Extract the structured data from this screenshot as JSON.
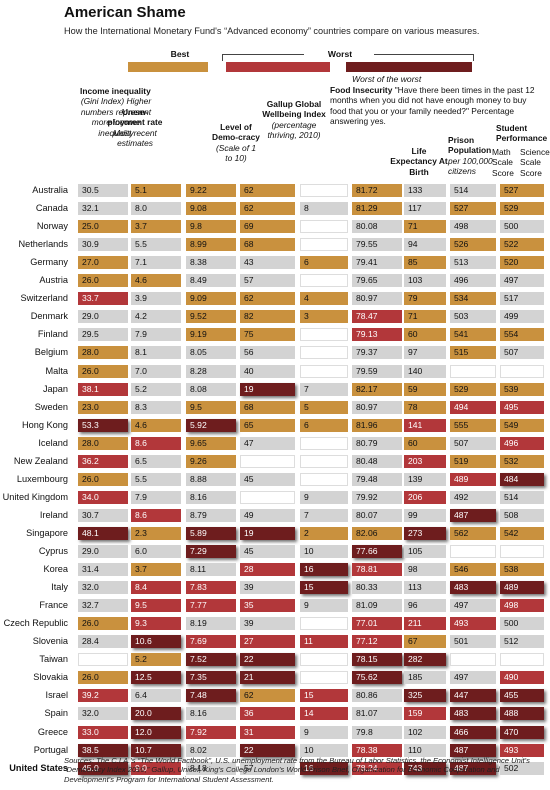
{
  "title": "American Shame",
  "subtitle": "How the International Monetary Fund's “Advanced economy” countries compare on various measures.",
  "legend": {
    "best": "Best",
    "worst": "Worst",
    "worst_of_worst": "Worst of the worst",
    "colors": {
      "neutral": "#d3d3d3",
      "best": "#c9913e",
      "worst": "#b2373a",
      "worst_of_worst": "#6e1d1e",
      "blank": "#ffffff"
    }
  },
  "headers": {
    "income": {
      "bold": "Income inequality",
      "note": "(Gini Index) Higher numbers represent more income inequality"
    },
    "unemp": {
      "bold": "Unem-ployment rate",
      "note": "Most recent estimates"
    },
    "democ": {
      "bold": "Level of Demo-cracy",
      "note": "(Scale of 1 to 10)"
    },
    "gallup": {
      "bold": "Gallup Global Wellbeing Index",
      "note": "(percentage thriving, 2010)"
    },
    "food": {
      "bold": "Food Insecurity",
      "note": "\"Have there been times in the past 12 months when you did not have enough money to buy food that you or your family needed?\" Percentage answering yes."
    },
    "life": {
      "bold": "Life Expectancy At Birth"
    },
    "prison": {
      "bold": "Prison Population",
      "note": "per 100,000 citizens"
    },
    "student": {
      "bold": "Student Performance",
      "math": "Math Scale Score",
      "science": "Science Scale Score"
    }
  },
  "chart_data": {
    "type": "table",
    "columns": [
      "Income inequality",
      "Unemployment rate",
      "Level of Democracy",
      "Gallup Global Wellbeing Index",
      "Food Insecurity",
      "Life Expectancy At Birth",
      "Prison Population",
      "Math Scale Score",
      "Science Scale Score"
    ],
    "rows": [
      {
        "country": "Australia",
        "values": [
          "30.5",
          "5.1",
          "9.22",
          "62",
          "",
          "81.72",
          "133",
          "514",
          "527"
        ],
        "ratings": [
          "n",
          "b",
          "b",
          "b",
          "x",
          "b",
          "n",
          "n",
          "b"
        ]
      },
      {
        "country": "Canada",
        "values": [
          "32.1",
          "8.0",
          "9.08",
          "62",
          "8",
          "81.29",
          "117",
          "527",
          "529"
        ],
        "ratings": [
          "n",
          "n",
          "b",
          "b",
          "n",
          "b",
          "n",
          "b",
          "b"
        ]
      },
      {
        "country": "Norway",
        "values": [
          "25.0",
          "3.7",
          "9.8",
          "69",
          "",
          "80.08",
          "71",
          "498",
          "500"
        ],
        "ratings": [
          "b",
          "b",
          "b",
          "b",
          "x",
          "n",
          "b",
          "n",
          "n"
        ]
      },
      {
        "country": "Netherlands",
        "values": [
          "30.9",
          "5.5",
          "8.99",
          "68",
          "",
          "79.55",
          "94",
          "526",
          "522"
        ],
        "ratings": [
          "n",
          "n",
          "b",
          "b",
          "x",
          "n",
          "n",
          "b",
          "b"
        ]
      },
      {
        "country": "Germany",
        "values": [
          "27.0",
          "7.1",
          "8.38",
          "43",
          "6",
          "79.41",
          "85",
          "513",
          "520"
        ],
        "ratings": [
          "b",
          "n",
          "n",
          "n",
          "b",
          "n",
          "b",
          "n",
          "b"
        ]
      },
      {
        "country": "Austria",
        "values": [
          "26.0",
          "4.6",
          "8.49",
          "57",
          "",
          "79.65",
          "103",
          "496",
          "497"
        ],
        "ratings": [
          "b",
          "b",
          "n",
          "n",
          "x",
          "n",
          "n",
          "n",
          "n"
        ]
      },
      {
        "country": "Switzerland",
        "values": [
          "33.7",
          "3.9",
          "9.09",
          "62",
          "4",
          "80.97",
          "79",
          "534",
          "517"
        ],
        "ratings": [
          "w",
          "n",
          "b",
          "b",
          "b",
          "n",
          "b",
          "b",
          "n"
        ]
      },
      {
        "country": "Denmark",
        "values": [
          "29.0",
          "4.2",
          "9.52",
          "82",
          "3",
          "78.47",
          "71",
          "503",
          "499"
        ],
        "ratings": [
          "n",
          "n",
          "b",
          "b",
          "b",
          "w",
          "b",
          "n",
          "n"
        ]
      },
      {
        "country": "Finland",
        "values": [
          "29.5",
          "7.9",
          "9.19",
          "75",
          "",
          "79.13",
          "60",
          "541",
          "554"
        ],
        "ratings": [
          "n",
          "n",
          "b",
          "b",
          "x",
          "w",
          "b",
          "b",
          "b"
        ]
      },
      {
        "country": "Belgium",
        "values": [
          "28.0",
          "8.1",
          "8.05",
          "56",
          "",
          "79.37",
          "97",
          "515",
          "507"
        ],
        "ratings": [
          "b",
          "n",
          "n",
          "n",
          "x",
          "n",
          "n",
          "b",
          "n"
        ]
      },
      {
        "country": "Malta",
        "values": [
          "26.0",
          "7.0",
          "8.28",
          "40",
          "",
          "79.59",
          "140",
          "",
          ""
        ],
        "ratings": [
          "b",
          "n",
          "n",
          "n",
          "x",
          "n",
          "n",
          "x",
          "x"
        ]
      },
      {
        "country": "Japan",
        "values": [
          "38.1",
          "5.2",
          "8.08",
          "19",
          "7",
          "82.17",
          "59",
          "529",
          "539"
        ],
        "ratings": [
          "w",
          "n",
          "n",
          "k",
          "n",
          "b",
          "b",
          "b",
          "b"
        ]
      },
      {
        "country": "Sweden",
        "values": [
          "23.0",
          "8.3",
          "9.5",
          "68",
          "5",
          "80.97",
          "78",
          "494",
          "495"
        ],
        "ratings": [
          "b",
          "n",
          "b",
          "b",
          "b",
          "n",
          "b",
          "w",
          "w"
        ]
      },
      {
        "country": "Hong Kong",
        "values": [
          "53.3",
          "4.6",
          "5.92",
          "65",
          "6",
          "81.96",
          "141",
          "555",
          "549"
        ],
        "ratings": [
          "k",
          "b",
          "k",
          "b",
          "b",
          "b",
          "w",
          "b",
          "b"
        ]
      },
      {
        "country": "Iceland",
        "values": [
          "28.0",
          "8.6",
          "9.65",
          "47",
          "",
          "80.79",
          "60",
          "507",
          "496"
        ],
        "ratings": [
          "b",
          "w",
          "b",
          "n",
          "x",
          "n",
          "b",
          "n",
          "w"
        ]
      },
      {
        "country": "New Zealand",
        "values": [
          "36.2",
          "6.5",
          "9.26",
          "",
          "",
          "80.48",
          "203",
          "519",
          "532"
        ],
        "ratings": [
          "w",
          "n",
          "b",
          "x",
          "x",
          "n",
          "w",
          "b",
          "b"
        ]
      },
      {
        "country": "Luxembourg",
        "values": [
          "26.0",
          "5.5",
          "8.88",
          "45",
          "",
          "79.48",
          "139",
          "489",
          "484"
        ],
        "ratings": [
          "b",
          "n",
          "n",
          "n",
          "x",
          "n",
          "n",
          "w",
          "k"
        ]
      },
      {
        "country": "United Kingdom",
        "values": [
          "34.0",
          "7.9",
          "8.16",
          "",
          "9",
          "79.92",
          "206",
          "492",
          "514"
        ],
        "ratings": [
          "w",
          "n",
          "n",
          "x",
          "n",
          "n",
          "w",
          "n",
          "n"
        ]
      },
      {
        "country": "Ireland",
        "values": [
          "30.7",
          "8.6",
          "8.79",
          "49",
          "7",
          "80.07",
          "99",
          "487",
          "508"
        ],
        "ratings": [
          "n",
          "w",
          "n",
          "n",
          "n",
          "n",
          "n",
          "k",
          "n"
        ]
      },
      {
        "country": "Singapore",
        "values": [
          "48.1",
          "2.3",
          "5.89",
          "19",
          "2",
          "82.06",
          "273",
          "562",
          "542"
        ],
        "ratings": [
          "k",
          "b",
          "k",
          "k",
          "b",
          "b",
          "k",
          "b",
          "b"
        ]
      },
      {
        "country": "Cyprus",
        "values": [
          "29.0",
          "6.0",
          "7.29",
          "45",
          "10",
          "77.66",
          "105",
          "",
          ""
        ],
        "ratings": [
          "n",
          "n",
          "k",
          "n",
          "n",
          "k",
          "n",
          "x",
          "x"
        ]
      },
      {
        "country": "Korea",
        "values": [
          "31.4",
          "3.7",
          "8.11",
          "28",
          "16",
          "78.81",
          "98",
          "546",
          "538"
        ],
        "ratings": [
          "n",
          "b",
          "n",
          "w",
          "k",
          "w",
          "n",
          "b",
          "b"
        ]
      },
      {
        "country": "Italy",
        "values": [
          "32.0",
          "8.4",
          "7.83",
          "39",
          "15",
          "80.33",
          "113",
          "483",
          "489"
        ],
        "ratings": [
          "n",
          "w",
          "w",
          "n",
          "k",
          "n",
          "n",
          "k",
          "k"
        ]
      },
      {
        "country": "France",
        "values": [
          "32.7",
          "9.5",
          "7.77",
          "35",
          "9",
          "81.09",
          "96",
          "497",
          "498"
        ],
        "ratings": [
          "n",
          "w",
          "w",
          "w",
          "n",
          "n",
          "n",
          "n",
          "w"
        ]
      },
      {
        "country": "Czech Republic",
        "values": [
          "26.0",
          "9.3",
          "8.19",
          "39",
          "",
          "77.01",
          "211",
          "493",
          "500"
        ],
        "ratings": [
          "b",
          "w",
          "n",
          "n",
          "x",
          "w",
          "w",
          "w",
          "n"
        ]
      },
      {
        "country": "Slovenia",
        "values": [
          "28.4",
          "10.6",
          "7.69",
          "27",
          "11",
          "77.12",
          "67",
          "501",
          "512"
        ],
        "ratings": [
          "n",
          "k",
          "w",
          "w",
          "w",
          "w",
          "b",
          "n",
          "n"
        ]
      },
      {
        "country": "Taiwan",
        "values": [
          "",
          "5.2",
          "7.52",
          "22",
          "",
          "78.15",
          "282",
          "",
          ""
        ],
        "ratings": [
          "x",
          "b",
          "k",
          "k",
          "x",
          "k",
          "k",
          "x",
          "x"
        ]
      },
      {
        "country": "Slovakia",
        "values": [
          "26.0",
          "12.5",
          "7.35",
          "21",
          "",
          "75.62",
          "185",
          "497",
          "490"
        ],
        "ratings": [
          "b",
          "k",
          "k",
          "k",
          "x",
          "k",
          "n",
          "n",
          "w"
        ]
      },
      {
        "country": "Israel",
        "values": [
          "39.2",
          "6.4",
          "7.48",
          "62",
          "15",
          "80.86",
          "325",
          "447",
          "455"
        ],
        "ratings": [
          "w",
          "n",
          "k",
          "b",
          "w",
          "n",
          "k",
          "k",
          "k"
        ]
      },
      {
        "country": "Spain",
        "values": [
          "32.0",
          "20.0",
          "8.16",
          "36",
          "14",
          "81.07",
          "159",
          "483",
          "488"
        ],
        "ratings": [
          "n",
          "k",
          "n",
          "w",
          "w",
          "n",
          "w",
          "k",
          "k"
        ]
      },
      {
        "country": "Greece",
        "values": [
          "33.0",
          "12.0",
          "7.92",
          "31",
          "9",
          "79.8",
          "102",
          "466",
          "470"
        ],
        "ratings": [
          "w",
          "k",
          "w",
          "w",
          "n",
          "n",
          "n",
          "k",
          "k"
        ]
      },
      {
        "country": "Portugal",
        "values": [
          "38.5",
          "10.7",
          "8.02",
          "22",
          "10",
          "78.38",
          "110",
          "487",
          "493"
        ],
        "ratings": [
          "k",
          "k",
          "n",
          "k",
          "n",
          "w",
          "n",
          "k",
          "w"
        ]
      },
      {
        "country": "United States",
        "values": [
          "45.0",
          "9.0",
          "8.18",
          "57",
          "16",
          "78.24",
          "743",
          "487",
          "502"
        ],
        "ratings": [
          "k",
          "w",
          "n",
          "n",
          "k",
          "w",
          "k",
          "k",
          "n"
        ],
        "bold": true
      }
    ]
  },
  "sources": "Sources: The C.I.A.'s “The World Factbook”, U.S. unemployment rate from the Bureau of Labor Statistics, the Economist Intelligence Unit's “Democracy Index 2010,” Gallup, Unicef, King's College London's World Prison Brief, Organization for Economic Cooperation and Development's Program for International Student Assessment."
}
